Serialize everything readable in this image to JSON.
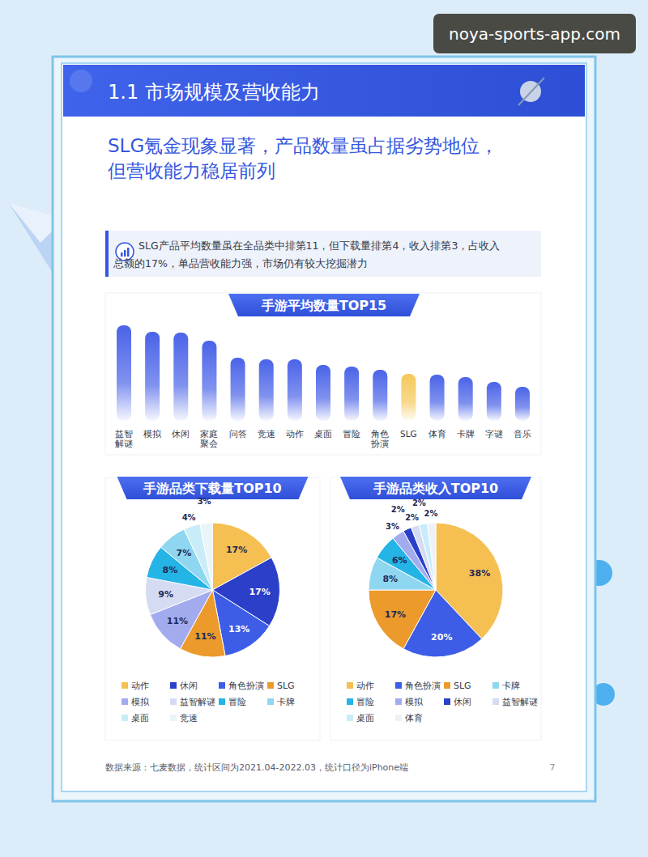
{
  "watermark": "noya-sports-app.com",
  "header": {
    "section": "1.1 市场规模及营收能力"
  },
  "headline": [
    "SLG氪金现象显著，产品数量虽占据劣势地位，",
    "但营收能力稳居前列"
  ],
  "insight": [
    "SLG产品平均数量虽在全品类中排第11，但下载量排第4，收入排第3，占收入",
    "总额的17%，单品营收能力强，市场仍有较大挖掘潜力"
  ],
  "chart_data": [
    {
      "type": "bar",
      "title": "手游平均数量TOP15",
      "categories": [
        "益智解谜",
        "模拟",
        "休闲",
        "家庭聚会",
        "问答",
        "竞速",
        "动作",
        "桌面",
        "冒险",
        "角色扮演",
        "SLG",
        "体育",
        "卡牌",
        "字谜",
        "音乐"
      ],
      "values": [
        118,
        110,
        109,
        99,
        78,
        76,
        76,
        69,
        67,
        63,
        58,
        57,
        54,
        48,
        42
      ],
      "colors": [
        "#4a63e8",
        "#4a63e8",
        "#4a63e8",
        "#4a63e8",
        "#4a63e8",
        "#4a63e8",
        "#4a63e8",
        "#4a63e8",
        "#4a63e8",
        "#4a63e8",
        "#f5c85a",
        "#4a63e8",
        "#4a63e8",
        "#4a63e8",
        "#4a63e8"
      ],
      "ylim": [
        0,
        120
      ],
      "tick_labels": "x"
    },
    {
      "type": "pie",
      "title": "手游品类下载量TOP10",
      "categories": [
        "动作",
        "休闲",
        "角色扮演",
        "SLG",
        "模拟",
        "益智解谜",
        "冒险",
        "卡牌",
        "桌面",
        "竞速"
      ],
      "values": [
        17,
        17,
        13,
        11,
        11,
        9,
        8,
        7,
        4,
        3
      ],
      "value_labels": [
        "17%",
        "17%",
        "13%",
        "11%",
        "11%",
        "9%",
        "8%",
        "7%",
        "4%",
        "3%"
      ],
      "colors": [
        "#f6bf52",
        "#2b3fc9",
        "#3d5de6",
        "#ec9a2c",
        "#a3abef",
        "#d6dbf4",
        "#25b4e6",
        "#8fd6f0",
        "#c9edf8",
        "#eaf5fa"
      ],
      "data_labels": true,
      "legend": "bottom"
    },
    {
      "type": "pie",
      "title": "手游品类收入TOP10",
      "categories": [
        "动作",
        "角色扮演",
        "SLG",
        "卡牌",
        "冒险",
        "模拟",
        "休闲",
        "益智解谜",
        "桌面",
        "体育"
      ],
      "values": [
        38,
        20,
        17,
        8,
        6,
        3,
        2,
        2,
        2,
        2
      ],
      "value_labels": [
        "38%",
        "20%",
        "17%",
        "8%",
        "6%",
        "3%",
        "2%",
        "2%",
        "2%",
        "2%"
      ],
      "colors": [
        "#f6bf52",
        "#3d5de6",
        "#ec9a2c",
        "#8fd6f0",
        "#25b4e6",
        "#a3abef",
        "#2b3fc9",
        "#d6dbf4",
        "#c9edf8",
        "#eef2f6"
      ],
      "data_labels": true,
      "legend": "bottom"
    }
  ],
  "footer": {
    "source": "数据来源：七麦数据，统计区间为2021.04-2022.03，统计口径为iPhone端",
    "page": "7"
  }
}
